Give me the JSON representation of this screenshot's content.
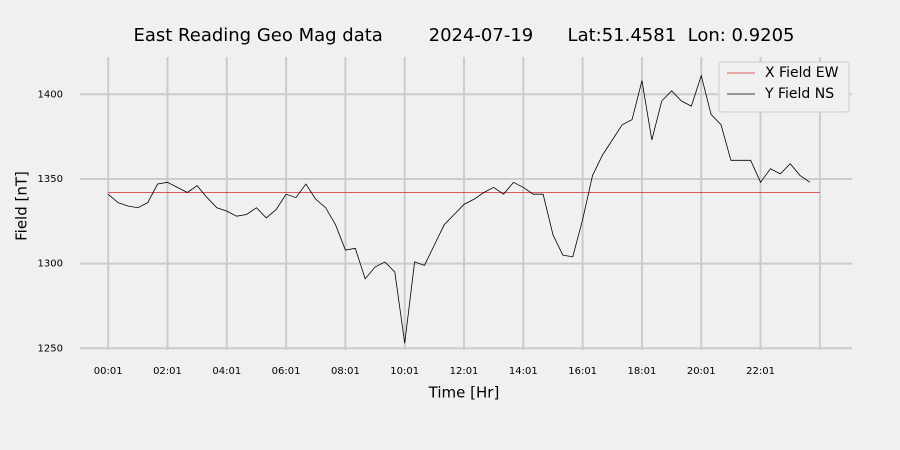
{
  "chart_data": {
    "type": "line",
    "title": "East Reading Geo Mag data        2024-07-19      Lat:51.4581  Lon: 0.9205",
    "x_label": "Time  [Hr]",
    "y_label": "Field  [nT]",
    "legend": "upper right",
    "grid": true,
    "xlim": [
      -56,
      1506
    ],
    "ylim": [
      1249,
      1422
    ],
    "xticks": [
      {
        "value": 1,
        "label": "00:01"
      },
      {
        "value": 121,
        "label": "02:01"
      },
      {
        "value": 241,
        "label": "04:01"
      },
      {
        "value": 361,
        "label": "06:01"
      },
      {
        "value": 481,
        "label": "08:01"
      },
      {
        "value": 601,
        "label": "10:01"
      },
      {
        "value": 721,
        "label": "12:01"
      },
      {
        "value": 841,
        "label": "14:01"
      },
      {
        "value": 961,
        "label": "16:01"
      },
      {
        "value": 1081,
        "label": "18:01"
      },
      {
        "value": 1201,
        "label": "20:01"
      },
      {
        "value": 1321,
        "label": "22:01"
      },
      {
        "value": 1441
      }
    ],
    "yticks": [
      1250,
      1300,
      1350,
      1400
    ],
    "series": [
      {
        "name": "X Field EW",
        "color": "#d62728",
        "x": [
          1,
          1441
        ],
        "values": [
          1342,
          1342
        ]
      },
      {
        "name": "Y Field NS",
        "color": "#000000",
        "x": [
          1,
          21,
          41,
          61,
          81,
          101,
          121,
          141,
          161,
          181,
          201,
          221,
          241,
          261,
          281,
          301,
          321,
          341,
          361,
          381,
          401,
          421,
          441,
          461,
          481,
          501,
          521,
          541,
          561,
          581,
          601,
          621,
          641,
          661,
          681,
          701,
          721,
          741,
          761,
          781,
          801,
          821,
          841,
          861,
          881,
          901,
          921,
          941,
          961,
          981,
          1001,
          1021,
          1041,
          1061,
          1081,
          1101,
          1121,
          1141,
          1161,
          1181,
          1201,
          1221,
          1241,
          1261,
          1281,
          1301,
          1321,
          1341,
          1361,
          1381,
          1401,
          1421
        ],
        "values": [
          1341,
          1336,
          1334,
          1333,
          1336,
          1347,
          1348,
          1345,
          1342,
          1346,
          1339,
          1333,
          1331,
          1328,
          1329,
          1333,
          1327,
          1332,
          1341,
          1339,
          1347,
          1338,
          1333,
          1323,
          1308,
          1309,
          1291,
          1298,
          1301,
          1295,
          1253,
          1301,
          1299,
          1311,
          1323,
          1329,
          1335,
          1338,
          1342,
          1345,
          1341,
          1348,
          1345,
          1341,
          1341,
          1317,
          1305,
          1304,
          1326,
          1352,
          1364,
          1373,
          1382,
          1385,
          1408,
          1373,
          1396,
          1402,
          1396,
          1393,
          1411,
          1388,
          1382,
          1361,
          1361,
          1361,
          1348,
          1356,
          1353,
          1359,
          1352,
          1348
        ]
      }
    ]
  }
}
